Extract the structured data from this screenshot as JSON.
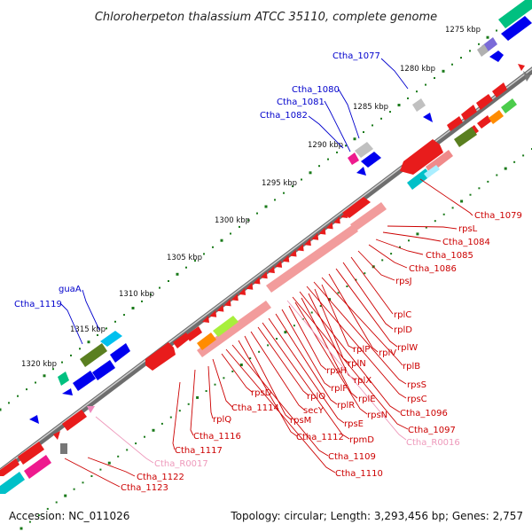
{
  "title": "Chloroherpeton thalassium ATCC 35110, complete genome",
  "footer": {
    "accession": "Accession: NC_011026",
    "stats": "Topology: circular; Length: 3,293,456 bp; Genes: 2,757"
  },
  "colors": {
    "forward_label": "#0000cc",
    "reverse_label": "#cc0000",
    "rna_label": "#ee99bb",
    "backbone": "#808080",
    "tick_dot": "#1a7a1a"
  },
  "kbp_markers": [
    "1275 kbp",
    "1280 kbp",
    "1285 kbp",
    "1290 kbp",
    "1295 kbp",
    "1300 kbp",
    "1305 kbp",
    "1310 kbp",
    "1315 kbp",
    "1320 kbp"
  ],
  "labels_top": [
    "Ctha_1077",
    "Ctha_1080",
    "Ctha_1081",
    "Ctha_1082",
    "guaA",
    "Ctha_1119"
  ],
  "labels_right": [
    "Ctha_1079",
    "rpsL",
    "Ctha_1084",
    "Ctha_1085",
    "Ctha_1086",
    "rpsJ",
    "rplC",
    "rplD",
    "rplW",
    "rplV",
    "rplB",
    "rpsS",
    "rpsC",
    "Ctha_1096",
    "Ctha_1097",
    "Ctha_R0016",
    "rplP",
    "rplN",
    "rplX",
    "rplE",
    "rpsN",
    "rpsH",
    "rplF",
    "rplR",
    "rpsE",
    "rpmD",
    "rpsD",
    "rplQ",
    "secY",
    "rpsM",
    "Ctha_1112",
    "Ctha_1109",
    "Ctha_1110",
    "Ctha_1114",
    "rplQ_left",
    "Ctha_1116",
    "Ctha_1117",
    "Ctha_R0017",
    "Ctha_1122",
    "Ctha_1123"
  ],
  "label_text": {
    "Ctha_1077": "Ctha_1077",
    "Ctha_1080": "Ctha_1080",
    "Ctha_1081": "Ctha_1081",
    "Ctha_1082": "Ctha_1082",
    "guaA": "guaA",
    "Ctha_1119": "Ctha_1119",
    "Ctha_1079": "Ctha_1079",
    "rpsL": "rpsL",
    "Ctha_1084": "Ctha_1084",
    "Ctha_1085": "Ctha_1085",
    "Ctha_1086": "Ctha_1086",
    "rpsJ": "rpsJ",
    "rplC": "rplC",
    "rplD": "rplD",
    "rplW": "rplW",
    "rplV": "rplV",
    "rplB": "rplB",
    "rpsS": "rpsS",
    "rpsC": "rpsC",
    "Ctha_1096": "Ctha_1096",
    "Ctha_1097": "Ctha_1097",
    "Ctha_R0016": "Ctha_R0016",
    "rplP": "rplP",
    "rplN": "rplN",
    "rplX": "rplX",
    "rplE": "rplE",
    "rpsN": "rpsN",
    "rpsH": "rpsH",
    "rplF": "rplF",
    "rplR": "rplR",
    "rpsE": "rpsE",
    "rpmD": "rpmD",
    "rpsD": "rpsD",
    "rplQ": "rplO",
    "secY": "secY",
    "rpsM": "rpsM",
    "Ctha_1112": "Ctha_1112",
    "Ctha_1109": "Ctha_1109",
    "Ctha_1110": "Ctha_1110",
    "Ctha_1114": "Ctha_1114",
    "rplQ_left": "rplQ",
    "Ctha_1116": "Ctha_1116",
    "Ctha_1117": "Ctha_1117",
    "Ctha_R0017": "Ctha_R0017",
    "Ctha_1122": "Ctha_1122",
    "Ctha_1123": "Ctha_1123"
  }
}
